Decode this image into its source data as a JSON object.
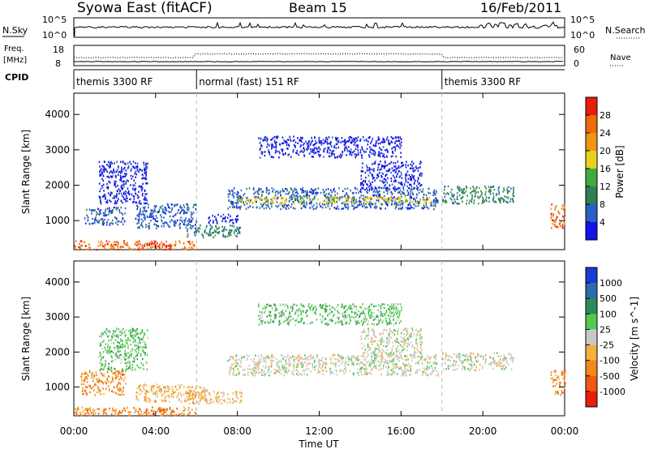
{
  "header": {
    "station": "Syowa East (fitACF)",
    "beam": "Beam 15",
    "date": "16/Feb/2011"
  },
  "top_panels": {
    "nsky_label": "N.Sky",
    "nsky_tick_top": "10^5",
    "nsky_tick_bottom": "10^0",
    "nsearch_label": "N.Search",
    "nsearch_tick_top": "10^5",
    "nsearch_tick_bottom": "10^0",
    "freq_label": "Freq.",
    "freq_unit": "[MHz]",
    "freq_tick_top": "18",
    "freq_tick_bottom": "8",
    "nave_label": "Nave",
    "nave_tick_top": "60",
    "nave_tick_bottom": "0",
    "cpid_label": "CPID",
    "cpid_segments": [
      {
        "label": "themis 3300 RF",
        "start_hour": 0,
        "end_hour": 6
      },
      {
        "label": "normal (fast) 151 RF",
        "start_hour": 6,
        "end_hour": 18
      },
      {
        "label": "themis 3300 RF",
        "start_hour": 18,
        "end_hour": 24
      }
    ]
  },
  "chart_data": [
    {
      "type": "heatmap",
      "title": "",
      "xlabel": "Time UT",
      "ylabel": "Slant Range [km]",
      "xlim": [
        0,
        24
      ],
      "ylim": [
        180,
        4600
      ],
      "x_ticks": [
        0,
        4,
        8,
        12,
        16,
        20,
        24
      ],
      "x_tick_labels": [
        "00:00",
        "04:00",
        "08:00",
        "12:00",
        "16:00",
        "20:00",
        "00:00"
      ],
      "y_ticks": [
        1000,
        2000,
        3000,
        4000
      ],
      "y_tick_labels": [
        "1000",
        "2000",
        "3000",
        "4000"
      ],
      "colorbar": {
        "label": "Power [dB]",
        "ticks": [
          "4",
          "8",
          "12",
          "16",
          "20",
          "24",
          "28"
        ],
        "colors": [
          "#1414e6",
          "#2860c8",
          "#2f7f55",
          "#3faa3f",
          "#e6d21e",
          "#f09614",
          "#f06a0a",
          "#e61e0a"
        ]
      },
      "echo_regions": [
        {
          "t0": 0.0,
          "t1": 6.0,
          "r0": 200,
          "r1": 450,
          "level": 6
        },
        {
          "t0": 3.5,
          "t1": 4.8,
          "r0": 250,
          "r1": 400,
          "level": 7
        },
        {
          "t0": 0.5,
          "t1": 2.5,
          "r0": 900,
          "r1": 1400,
          "level": 1
        },
        {
          "t0": 1.2,
          "t1": 3.6,
          "r0": 1500,
          "r1": 2700,
          "level": 0
        },
        {
          "t0": 3.0,
          "t1": 6.0,
          "r0": 800,
          "r1": 1500,
          "level": 1
        },
        {
          "t0": 5.5,
          "t1": 8.2,
          "r0": 550,
          "r1": 900,
          "level": 2
        },
        {
          "t0": 6.5,
          "t1": 8.0,
          "r0": 950,
          "r1": 1200,
          "level": 0
        },
        {
          "t0": 7.5,
          "t1": 17.8,
          "r0": 1350,
          "r1": 1950,
          "level": 1
        },
        {
          "t0": 8.0,
          "t1": 17.5,
          "r0": 1500,
          "r1": 1700,
          "level": 4
        },
        {
          "t0": 14.0,
          "t1": 17.0,
          "r0": 1900,
          "r1": 2700,
          "level": 0
        },
        {
          "t0": 9.0,
          "t1": 16.0,
          "r0": 2800,
          "r1": 3400,
          "level": 0
        },
        {
          "t0": 18.0,
          "t1": 21.5,
          "r0": 1500,
          "r1": 2000,
          "level": 2
        },
        {
          "t0": 23.3,
          "t1": 24.0,
          "r0": 800,
          "r1": 1500,
          "level": 6
        }
      ]
    },
    {
      "type": "heatmap",
      "title": "",
      "xlabel": "Time UT",
      "ylabel": "Slant Range [km]",
      "xlim": [
        0,
        24
      ],
      "ylim": [
        180,
        4600
      ],
      "x_ticks": [
        0,
        4,
        8,
        12,
        16,
        20,
        24
      ],
      "x_tick_labels": [
        "00:00",
        "04:00",
        "08:00",
        "12:00",
        "16:00",
        "20:00",
        "00:00"
      ],
      "y_ticks": [
        1000,
        2000,
        3000,
        4000
      ],
      "y_tick_labels": [
        "1000",
        "2000",
        "3000",
        "4000"
      ],
      "colorbar": {
        "label": "Velocity [m s^-1]",
        "ticks": [
          "1000",
          "500",
          "100",
          "25",
          "-25",
          "-100",
          "-500",
          "-1000"
        ],
        "colors": [
          "#1a3ccf",
          "#2b6bb0",
          "#2e8a57",
          "#4fc94f",
          "#c8c8c8",
          "#f5b042",
          "#f08a1a",
          "#f05a12",
          "#e61e0a"
        ]
      },
      "echo_regions": [
        {
          "t0": 0.0,
          "t1": 6.0,
          "r0": 200,
          "r1": 450,
          "level": 6
        },
        {
          "t0": 3.5,
          "t1": 4.8,
          "r0": 250,
          "r1": 400,
          "level": 7
        },
        {
          "t0": 0.3,
          "t1": 2.5,
          "r0": 800,
          "r1": 1500,
          "level": 6
        },
        {
          "t0": 1.2,
          "t1": 3.6,
          "r0": 1500,
          "r1": 2700,
          "level": 3
        },
        {
          "t0": 3.0,
          "t1": 6.5,
          "r0": 600,
          "r1": 1100,
          "level": 5
        },
        {
          "t0": 5.5,
          "t1": 8.2,
          "r0": 550,
          "r1": 900,
          "level": 5
        },
        {
          "t0": 7.5,
          "t1": 17.8,
          "r0": 1350,
          "r1": 1950,
          "level": 4
        },
        {
          "t0": 14.0,
          "t1": 17.0,
          "r0": 1900,
          "r1": 2700,
          "level": 4
        },
        {
          "t0": 9.0,
          "t1": 16.0,
          "r0": 2800,
          "r1": 3400,
          "level": 3
        },
        {
          "t0": 18.0,
          "t1": 21.5,
          "r0": 1500,
          "r1": 2000,
          "level": 4
        },
        {
          "t0": 23.3,
          "t1": 24.0,
          "r0": 800,
          "r1": 1500,
          "level": 6
        }
      ]
    }
  ]
}
